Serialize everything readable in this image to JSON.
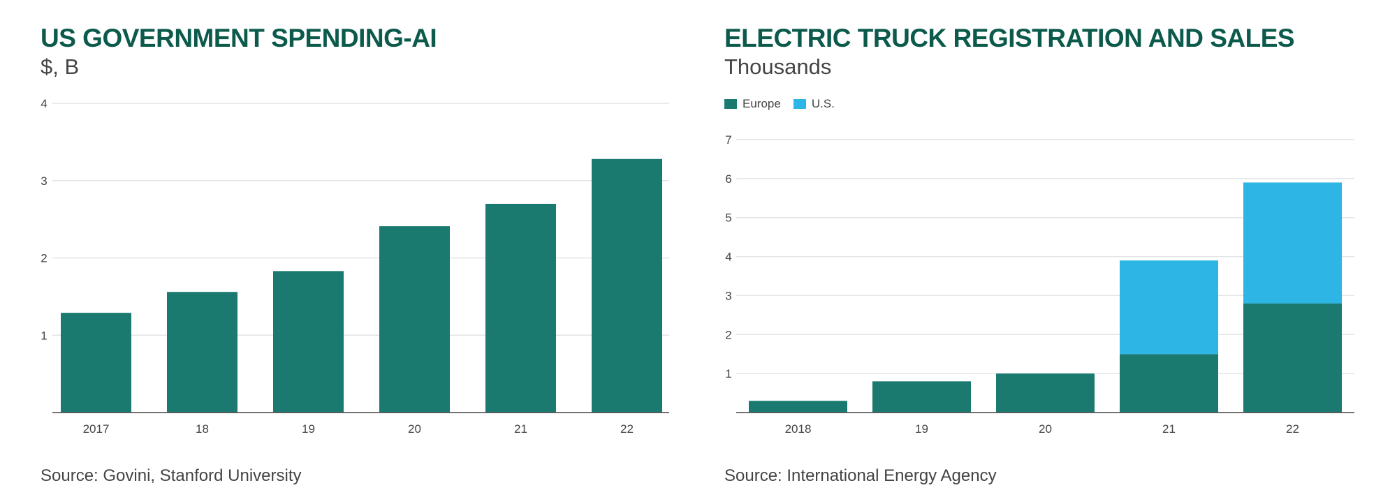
{
  "chart_data": [
    {
      "type": "bar",
      "title": "US GOVERNMENT SPENDING-AI",
      "subtitle": "$, B",
      "source": "Source: Govini, Stanford University",
      "categories": [
        "2017",
        "18",
        "19",
        "20",
        "21",
        "22"
      ],
      "values": [
        1.29,
        1.56,
        1.83,
        2.41,
        2.7,
        3.28
      ],
      "yticks": [
        "1",
        "2",
        "3",
        "4"
      ],
      "ylim": [
        0,
        4
      ],
      "grid": true,
      "color": "#1b7a6f"
    },
    {
      "type": "bar",
      "stacked": true,
      "title": "ELECTRIC TRUCK REGISTRATION AND SALES",
      "subtitle": "Thousands",
      "source": "Source: International Energy Agency",
      "categories": [
        "2018",
        "19",
        "20",
        "21",
        "22"
      ],
      "series": [
        {
          "name": "Europe",
          "values": [
            0.3,
            0.8,
            1.0,
            1.5,
            2.8
          ],
          "color": "#1b7a6f"
        },
        {
          "name": "U.S.",
          "values": [
            0,
            0,
            0,
            2.4,
            3.1
          ],
          "color": "#2cb5e5"
        }
      ],
      "yticks": [
        "1",
        "2",
        "3",
        "4",
        "5",
        "6",
        "7"
      ],
      "ylim": [
        0,
        7
      ],
      "grid": true,
      "legend": "top-left"
    }
  ]
}
